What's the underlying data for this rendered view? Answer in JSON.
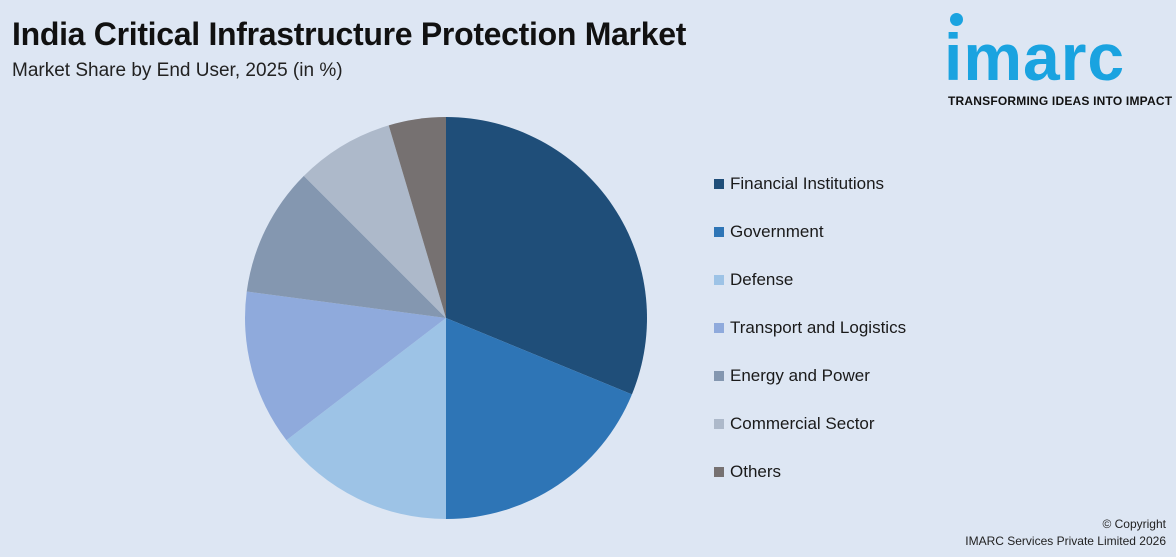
{
  "header": {
    "title": "India Critical Infrastructure Protection Market",
    "subtitle": "Market Share by End User, 2025 (in %)"
  },
  "logo": {
    "word": "imarc",
    "tagline": "TRANSFORMING IDEAS INTO IMPACT",
    "color": "#1aa3e0"
  },
  "chart_data": {
    "type": "pie",
    "title": "India Critical Infrastructure Protection Market",
    "subtitle": "Market Share by End User, 2025 (in %)",
    "legend_position": "right",
    "start": "top (12 o'clock), clockwise",
    "slices": [
      {
        "label": "Financial Institutions",
        "value": 31.2,
        "color": "#1f4e79"
      },
      {
        "label": "Government",
        "value": 18.8,
        "color": "#2e75b6"
      },
      {
        "label": "Defense",
        "value": 14.6,
        "color": "#9dc3e6"
      },
      {
        "label": "Transport and Logistics",
        "value": 12.5,
        "color": "#8faadc"
      },
      {
        "label": "Energy and Power",
        "value": 10.4,
        "color": "#8497b0"
      },
      {
        "label": "Commercial Sector",
        "value": 7.9,
        "color": "#adb9ca"
      },
      {
        "label": "Others",
        "value": 4.6,
        "color": "#767171"
      }
    ]
  },
  "footer": {
    "copyright_line1": "© Copyright",
    "copyright_line2": "IMARC Services Private Limited 2026"
  }
}
